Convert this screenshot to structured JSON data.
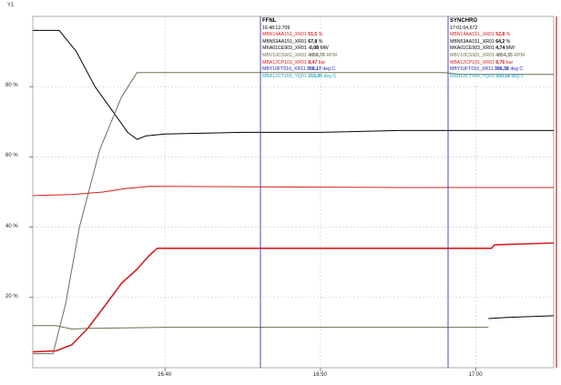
{
  "axis_title": "Y1",
  "y_ticks": [
    {
      "label": "80 %",
      "value": 80
    },
    {
      "label": "60 %",
      "value": 60
    },
    {
      "label": "40 %",
      "value": 40
    },
    {
      "label": "20 %",
      "value": 20
    }
  ],
  "x_ticks": [
    {
      "label": "16:40",
      "minutes": 40
    },
    {
      "label": "16:50",
      "minutes": 50
    },
    {
      "label": "17:00",
      "minutes": 60
    }
  ],
  "cursors": [
    {
      "title": "FFNL",
      "time": "16:48:12,709",
      "color": "#3a3aa8",
      "rows": [
        {
          "tag": "MBN14AA151_XR01",
          "value": "51,5",
          "unit": "%",
          "color": "#d42020"
        },
        {
          "tag": "MBN53AA151_XR01",
          "value": "67,8",
          "unit": "%",
          "color": "#000000"
        },
        {
          "tag": "MKA01CE903_XR01",
          "value": "-0,08",
          "unit": "MW",
          "color": "#000000"
        },
        {
          "tag": "MBV10CS901_XR01",
          "value": "4858,76",
          "unit": "RPM",
          "color": "#6f6f52"
        },
        {
          "tag": "MBA12CP101_XR01",
          "value": "8,47",
          "unit": "bar",
          "color": "#d42020"
        },
        {
          "tag": "MBY10FT010_XR11",
          "value": "358,17",
          "unit": "deg C",
          "color": "#1a1ab0"
        },
        {
          "tag": "MBA12CT109_YQ01",
          "value": "318,85",
          "unit": "deg C",
          "color": "#2aa6c0"
        }
      ]
    },
    {
      "title": "SYNCHRO",
      "time": "17:01:04,672",
      "color": "#3a3aa8",
      "rows": [
        {
          "tag": "MBN14AA151_XR01",
          "value": "52,8",
          "unit": "%",
          "color": "#d42020"
        },
        {
          "tag": "MBN53AA151_XR01",
          "value": "64,2",
          "unit": "%",
          "color": "#000000"
        },
        {
          "tag": "MKA01CE903_XR01",
          "value": "4,74",
          "unit": "MW",
          "color": "#000000"
        },
        {
          "tag": "MBV10CS901_XR01",
          "value": "4854,35",
          "unit": "RPM",
          "color": "#6f6f52"
        },
        {
          "tag": "MBA12CP101_XR01",
          "value": "8,76",
          "unit": "bar",
          "color": "#d42020"
        },
        {
          "tag": "MBY10FT010_XR11",
          "value": "396,38",
          "unit": "deg C",
          "color": "#1a1ab0"
        },
        {
          "tag": "MBA12CT109_YQ01",
          "value": "330,18",
          "unit": "deg C",
          "color": "#2aa6c0"
        }
      ]
    }
  ],
  "chart_data": {
    "type": "line",
    "xlabel": "",
    "ylabel": "Y1",
    "ylim": [
      0,
      100
    ],
    "xlim_minutes": [
      31.5,
      65
    ],
    "grid": true,
    "series": [
      {
        "color": "#000000",
        "points": [
          [
            31.5,
            96
          ],
          [
            33.2,
            96
          ],
          [
            34.3,
            90
          ],
          [
            35.5,
            80
          ],
          [
            36.8,
            72
          ],
          [
            37.6,
            67
          ],
          [
            38.2,
            65
          ],
          [
            38.8,
            66
          ],
          [
            40,
            66.5
          ],
          [
            45,
            67
          ],
          [
            50,
            67
          ],
          [
            55,
            67.5
          ],
          [
            56,
            67.5
          ],
          [
            65,
            67.5
          ]
        ]
      },
      {
        "color": "#6f6f52",
        "points": [
          [
            31.5,
            4
          ],
          [
            32.8,
            4
          ],
          [
            33.6,
            18
          ],
          [
            34.5,
            40
          ],
          [
            35.8,
            62
          ],
          [
            37.2,
            77
          ],
          [
            38.2,
            84
          ],
          [
            40,
            84
          ],
          [
            50,
            84
          ],
          [
            58,
            84
          ],
          [
            59,
            83.5
          ],
          [
            65,
            83.5
          ]
        ]
      },
      {
        "color": "#d42020",
        "points": [
          [
            31.5,
            49
          ],
          [
            34,
            49.3
          ],
          [
            36,
            50
          ],
          [
            37.5,
            51
          ],
          [
            39,
            51.6
          ],
          [
            45,
            51.5
          ],
          [
            55,
            51.3
          ],
          [
            65,
            51.3
          ]
        ]
      },
      {
        "color": "#d42020",
        "points": [
          [
            31.5,
            4.5
          ],
          [
            33,
            4.8
          ],
          [
            34,
            6.5
          ],
          [
            35,
            11
          ],
          [
            36.2,
            18
          ],
          [
            37.2,
            24
          ],
          [
            38.2,
            28
          ],
          [
            39,
            32
          ],
          [
            39.5,
            34
          ],
          [
            45,
            34
          ],
          [
            55,
            34
          ],
          [
            61,
            34
          ],
          [
            61.2,
            35
          ],
          [
            65,
            35.5
          ]
        ]
      },
      {
        "color": "#6f6f52",
        "points": [
          [
            31.5,
            12
          ],
          [
            33,
            12
          ],
          [
            34,
            11
          ],
          [
            35,
            11.2
          ],
          [
            40,
            11.5
          ],
          [
            50,
            11.5
          ],
          [
            60,
            11.5
          ],
          [
            60.8,
            11.5
          ]
        ]
      },
      {
        "color": "#000000",
        "points": [
          [
            60.8,
            14
          ],
          [
            62,
            14.3
          ],
          [
            65,
            14.8
          ]
        ]
      }
    ]
  }
}
